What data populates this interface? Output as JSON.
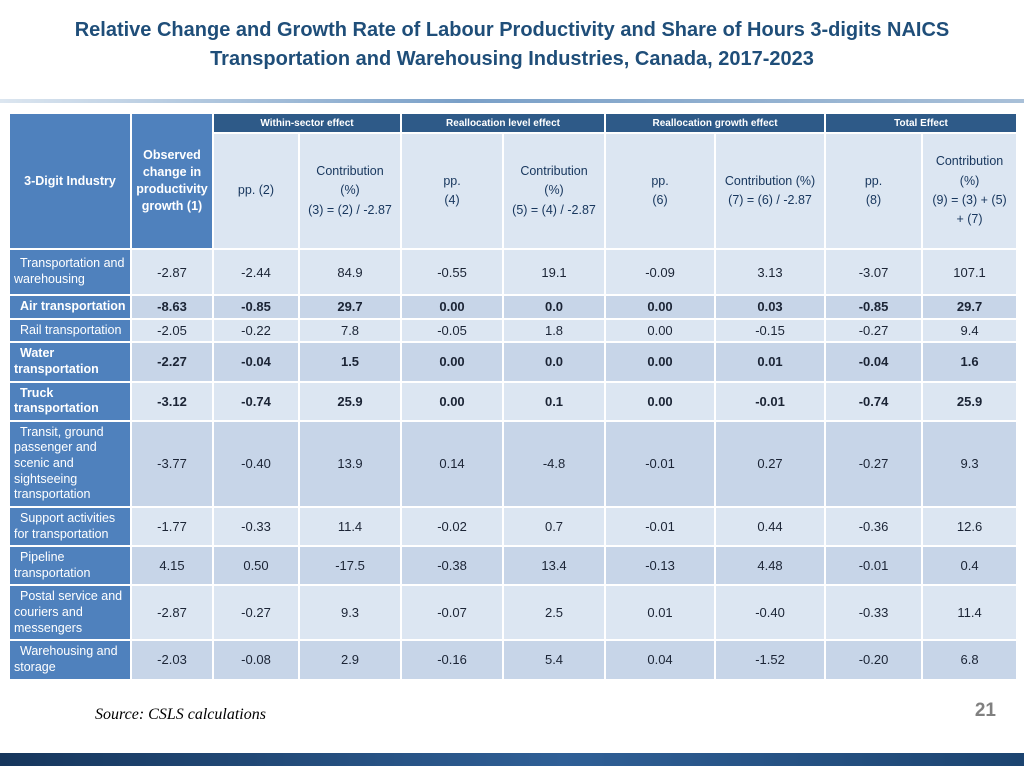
{
  "slide": {
    "title_lines": [
      "Relative Change and Growth Rate of Labour Productivity and Share of Hours 3-digits NAICS",
      "Transportation and Warehousing Industries, Canada, 2017-2023"
    ],
    "source_note": "Source: CSLS calculations",
    "page_number": "21"
  },
  "table": {
    "industry_header": "3-Digit Industry",
    "observed_header": "Observed change in productivity growth (1)",
    "group_headers": [
      "Within-sector effect",
      "Reallocation level effect",
      "Reallocation growth effect",
      "Total Effect"
    ],
    "column_headers": [
      "pp. (2)",
      "Contribution\n(%)\n(3) = (2) / -2.87",
      "pp.\n(4)",
      "Contribution\n(%)\n(5) = (4) / -2.87",
      "pp.\n(6)",
      "Contribution (%)\n(7) = (6) / -2.87",
      "pp.\n(8)",
      "Contribution\n(%)\n(9) = (3) + (5)\n+ (7)"
    ],
    "rows": [
      {
        "industry": "Transportation and warehousing",
        "bold": false,
        "values": [
          "-2.87",
          "-2.44",
          "84.9",
          "-0.55",
          "19.1",
          "-0.09",
          "3.13",
          "-3.07",
          "107.1"
        ]
      },
      {
        "industry": "Air transportation",
        "bold": true,
        "values": [
          "-8.63",
          "-0.85",
          "29.7",
          "0.00",
          "0.0",
          "0.00",
          "0.03",
          "-0.85",
          "29.7"
        ]
      },
      {
        "industry": "Rail transportation",
        "bold": false,
        "values": [
          "-2.05",
          "-0.22",
          "7.8",
          "-0.05",
          "1.8",
          "0.00",
          "-0.15",
          "-0.27",
          "9.4"
        ]
      },
      {
        "industry": "Water transportation",
        "bold": true,
        "values": [
          "-2.27",
          "-0.04",
          "1.5",
          "0.00",
          "0.0",
          "0.00",
          "0.01",
          "-0.04",
          "1.6"
        ]
      },
      {
        "industry": "Truck transportation",
        "bold": true,
        "values": [
          "-3.12",
          "-0.74",
          "25.9",
          "0.00",
          "0.1",
          "0.00",
          "-0.01",
          "-0.74",
          "25.9"
        ]
      },
      {
        "industry": "Transit, ground passenger and scenic and sightseeing transportation",
        "bold": false,
        "values": [
          "-3.77",
          "-0.40",
          "13.9",
          "0.14",
          "-4.8",
          "-0.01",
          "0.27",
          "-0.27",
          "9.3"
        ]
      },
      {
        "industry": "Support activities for transportation",
        "bold": false,
        "values": [
          "-1.77",
          "-0.33",
          "11.4",
          "-0.02",
          "0.7",
          "-0.01",
          "0.44",
          "-0.36",
          "12.6"
        ]
      },
      {
        "industry": "Pipeline transportation",
        "bold": false,
        "values": [
          "4.15",
          "0.50",
          "-17.5",
          "-0.38",
          "13.4",
          "-0.13",
          "4.48",
          "-0.01",
          "0.4"
        ]
      },
      {
        "industry": "Postal service and couriers and messengers",
        "bold": false,
        "values": [
          "-2.87",
          "-0.27",
          "9.3",
          "-0.07",
          "2.5",
          "0.01",
          "-0.40",
          "-0.33",
          "11.4"
        ]
      },
      {
        "industry": "Warehousing and storage",
        "bold": false,
        "values": [
          "-2.03",
          "-0.08",
          "2.9",
          "-0.16",
          "5.4",
          "0.04",
          "-1.52",
          "-0.20",
          "6.8"
        ]
      }
    ]
  },
  "colors": {
    "title_text": "#1F4E79",
    "header_bar": "#2E5A88",
    "accent_blue": "#4F81BD",
    "header_cell_bg": "#DCE6F2",
    "header_text": "#17365D",
    "row_light": "#DCE6F2",
    "row_dark": "#C7D5E8",
    "page_gray": "#808080"
  }
}
